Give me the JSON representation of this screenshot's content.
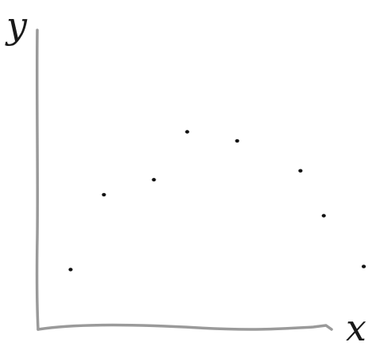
{
  "chart_data": {
    "type": "scatter",
    "title": "",
    "xlabel": "x",
    "ylabel": "y",
    "grid": false,
    "legend": "none",
    "ticks": false,
    "xlim": [
      0,
      10
    ],
    "ylim": [
      0,
      10
    ],
    "series": [
      {
        "x": [
          1,
          2,
          3.5,
          4.5,
          6,
          7.9,
          8.6,
          9.8
        ],
        "y": [
          2.0,
          4.5,
          5.0,
          6.6,
          6.3,
          5.3,
          3.8,
          2.1
        ]
      }
    ],
    "colors": {
      "axis": "#9a9a9a",
      "points": "#111111",
      "text": "#1a1a1a"
    }
  }
}
